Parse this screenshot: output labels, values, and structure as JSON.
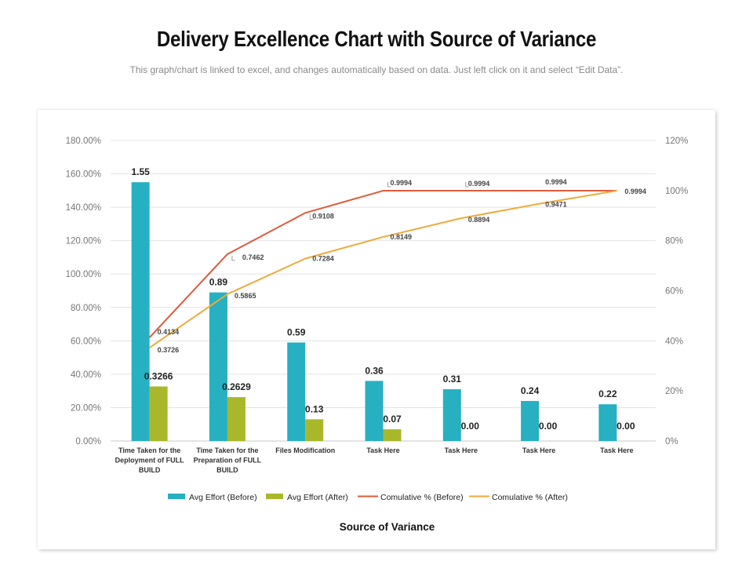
{
  "page": {
    "title": "Delivery Excellence Chart with Source of Variance",
    "subtitle": "This graph/chart is linked to excel, and changes automatically based on data. Just left click on it and select “Edit Data”."
  },
  "chart_data": {
    "type": "bar",
    "title": "Delivery Excellence Chart with Source of Variance",
    "xlabel": "Source of Variance",
    "ylabel": "",
    "grid": true,
    "legend_position": "bottom",
    "categories": [
      [
        "Time Taken for the",
        "Deployment of FULL",
        "BUILD"
      ],
      [
        "Time Taken for the",
        "Preparation of FULL",
        "BUILD"
      ],
      [
        "Files Modification"
      ],
      [
        "Task Here"
      ],
      [
        "Task Here"
      ],
      [
        "Task Here"
      ],
      [
        "Task Here"
      ]
    ],
    "left_axis": {
      "ylim": [
        0,
        1.8
      ],
      "ticks": [
        0,
        0.2,
        0.4,
        0.6,
        0.8,
        1.0,
        1.2,
        1.4,
        1.6,
        1.8
      ],
      "tick_labels": [
        "0.00%",
        "20.00%",
        "40.00%",
        "60.00%",
        "80.00%",
        "100.00%",
        "120.00%",
        "140.00%",
        "160.00%",
        "180.00%"
      ]
    },
    "right_axis": {
      "ylim": [
        0,
        1.2
      ],
      "ticks": [
        0,
        0.2,
        0.4,
        0.6,
        0.8,
        1.0,
        1.2
      ],
      "tick_labels": [
        "0%",
        "20%",
        "40%",
        "60%",
        "80%",
        "100%",
        "120%"
      ]
    },
    "series": [
      {
        "name": "Avg Effort (Before)",
        "kind": "bar",
        "axis": "left",
        "color": "#27b0c1",
        "values": [
          1.55,
          0.89,
          0.59,
          0.36,
          0.31,
          0.24,
          0.22
        ],
        "labels": [
          "1.55",
          "0.89",
          "0.59",
          "0.36",
          "0.31",
          "0.24",
          "0.22"
        ]
      },
      {
        "name": "Avg Effort (After)",
        "kind": "bar",
        "axis": "left",
        "color": "#a9b82a",
        "values": [
          0.3266,
          0.2629,
          0.13,
          0.07,
          0,
          0,
          0
        ],
        "labels": [
          "0.3266",
          "0.2629",
          "0.13",
          "0.07",
          "0.00",
          "0.00",
          "0.00"
        ]
      },
      {
        "name": "Cumulative % (Before)",
        "legend_label": "Comulative % (Before)",
        "kind": "line",
        "axis": "right",
        "color": "#dd5b3c",
        "values": [
          0.4134,
          0.7462,
          0.9108,
          0.9994,
          0.9994,
          0.9994,
          0.9994
        ],
        "labels": [
          "0.4134",
          "0.7462",
          "0.9108",
          "0.9994",
          "0.9994",
          "0.9994",
          "0.9994"
        ]
      },
      {
        "name": "Cumulative % (After)",
        "legend_label": "Comulative % (After)",
        "kind": "line",
        "axis": "right",
        "color": "#eeaa3a",
        "values": [
          0.3726,
          0.5865,
          0.7284,
          0.8149,
          0.8894,
          0.9471,
          0.9994
        ],
        "labels": [
          "0.3726",
          "0.5865",
          "0.7284",
          "0.8149",
          "0.8894",
          "0.9471",
          "0.9994"
        ]
      }
    ]
  }
}
